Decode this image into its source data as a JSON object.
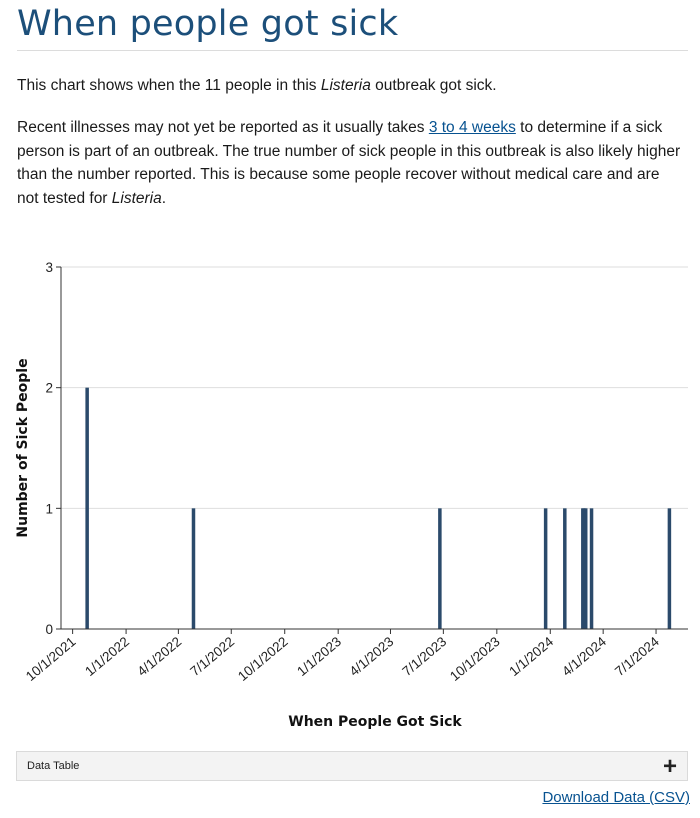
{
  "page": {
    "title": "When people got sick",
    "intro": {
      "before": "This chart shows when the 11 people in this ",
      "italic": "Listeria",
      "after": " outbreak got sick."
    },
    "paragraph": {
      "part1": "Recent illnesses may not yet be reported as it usually takes ",
      "link": "3 to 4 weeks",
      "part2": " to determine if a sick person is part of an outbreak. The true number of sick people in this outbreak is also likely higher than the number reported. This is because some people recover without medical care and are not tested for ",
      "italic": "Listeria",
      "end": "."
    },
    "data_table_label": "Data Table",
    "download_label": "Download Data (CSV)"
  },
  "chart_data": {
    "type": "bar",
    "xlabel": "When People Got Sick",
    "ylabel": "Number of Sick People",
    "ylim": [
      0,
      3
    ],
    "yticks": [
      0,
      1,
      2,
      3
    ],
    "xlim": [
      "2021-09-11",
      "2024-08-25"
    ],
    "xticks": [
      "10/1/2021",
      "1/1/2022",
      "4/1/2022",
      "7/1/2022",
      "10/1/2022",
      "1/1/2023",
      "4/1/2023",
      "7/1/2023",
      "10/1/2023",
      "1/1/2024",
      "4/1/2024",
      "7/1/2024"
    ],
    "grid": true,
    "color": "#2b4a6b",
    "bars": [
      {
        "x": "2021-10-26",
        "y": 2
      },
      {
        "x": "2022-04-27",
        "y": 1
      },
      {
        "x": "2023-06-25",
        "y": 1
      },
      {
        "x": "2023-12-24",
        "y": 1
      },
      {
        "x": "2024-01-26",
        "y": 1
      },
      {
        "x": "2024-02-26",
        "y": 1
      },
      {
        "x": "2024-02-28",
        "y": 1
      },
      {
        "x": "2024-03-02",
        "y": 1
      },
      {
        "x": "2024-03-12",
        "y": 1
      },
      {
        "x": "2024-07-24",
        "y": 1
      }
    ]
  }
}
